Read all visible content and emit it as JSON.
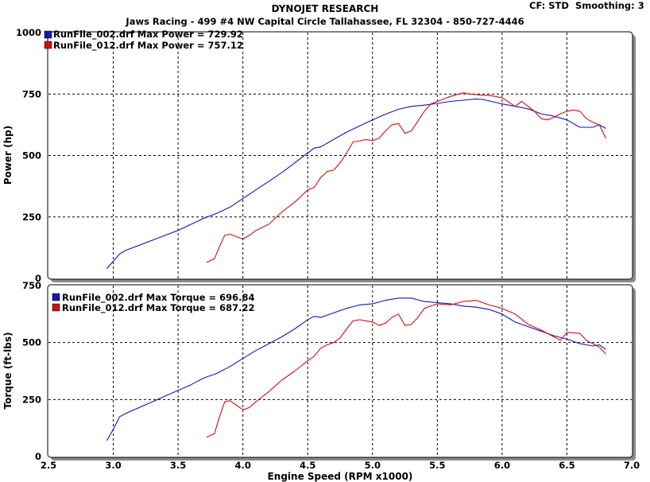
{
  "header": {
    "title": "DYNOJET RESEARCH",
    "subtitle": "Jaws Racing - 499 #4 NW Capital Circle Tallahassee, FL 32304 - 850-727-4446",
    "cf_label": "CF: STD",
    "smoothing_label": "Smoothing: 3"
  },
  "colors": {
    "blue": "#1515b5",
    "red": "#cc1111"
  },
  "chart_data": [
    {
      "type": "line",
      "ylabel": "Power (hp)",
      "xlabel": "",
      "xlim": [
        2.5,
        7.0
      ],
      "ylim": [
        0,
        1000
      ],
      "yticks": [
        "0",
        "250",
        "500",
        "750",
        "1000"
      ],
      "grid": true,
      "legend_position": "top-left",
      "series": [
        {
          "name": "RunFile_002.drf Max Power = 729.92",
          "color": "#1515b5",
          "x": [
            2.95,
            3.0,
            3.05,
            3.1,
            3.2,
            3.3,
            3.4,
            3.5,
            3.6,
            3.7,
            3.8,
            3.9,
            4.0,
            4.1,
            4.2,
            4.3,
            4.4,
            4.5,
            4.55,
            4.6,
            4.7,
            4.8,
            4.9,
            5.0,
            5.1,
            5.2,
            5.3,
            5.4,
            5.5,
            5.6,
            5.7,
            5.8,
            5.85,
            5.9,
            6.0,
            6.1,
            6.2,
            6.3,
            6.4,
            6.5,
            6.6,
            6.7,
            6.75,
            6.8
          ],
          "y": [
            40,
            70,
            100,
            115,
            135,
            155,
            175,
            195,
            220,
            245,
            265,
            290,
            325,
            360,
            395,
            430,
            470,
            510,
            530,
            535,
            565,
            595,
            620,
            645,
            668,
            688,
            700,
            705,
            712,
            720,
            725,
            730,
            728,
            722,
            710,
            700,
            690,
            670,
            660,
            645,
            615,
            615,
            625,
            610
          ]
        },
        {
          "name": "RunFile_012.drf Max Power = 757.12",
          "color": "#cc1111",
          "x": [
            3.72,
            3.78,
            3.82,
            3.86,
            3.9,
            3.95,
            4.0,
            4.05,
            4.1,
            4.2,
            4.3,
            4.4,
            4.5,
            4.55,
            4.6,
            4.65,
            4.7,
            4.75,
            4.8,
            4.85,
            4.9,
            4.95,
            5.0,
            5.05,
            5.1,
            5.15,
            5.2,
            5.25,
            5.3,
            5.35,
            5.4,
            5.45,
            5.5,
            5.55,
            5.6,
            5.7,
            5.75,
            5.8,
            5.85,
            5.9,
            6.0,
            6.1,
            6.15,
            6.2,
            6.25,
            6.3,
            6.35,
            6.4,
            6.45,
            6.5,
            6.55,
            6.6,
            6.65,
            6.7,
            6.75,
            6.8
          ],
          "y": [
            65,
            80,
            130,
            175,
            180,
            170,
            160,
            175,
            195,
            220,
            270,
            310,
            360,
            370,
            410,
            435,
            440,
            470,
            510,
            555,
            560,
            565,
            560,
            570,
            600,
            625,
            630,
            590,
            600,
            640,
            680,
            710,
            720,
            730,
            740,
            755,
            750,
            748,
            745,
            745,
            735,
            700,
            720,
            700,
            680,
            650,
            645,
            655,
            670,
            680,
            685,
            680,
            650,
            635,
            625,
            570
          ]
        }
      ]
    },
    {
      "type": "line",
      "ylabel": "Torque (ft-lbs)",
      "xlabel": "Engine Speed (RPM x1000)",
      "xlim": [
        2.5,
        7.0
      ],
      "ylim": [
        0,
        750
      ],
      "xticks": [
        "2.5",
        "3.0",
        "3.5",
        "4.0",
        "4.5",
        "5.0",
        "5.5",
        "6.0",
        "6.5",
        "7.0"
      ],
      "yticks": [
        "0",
        "250",
        "500",
        "750"
      ],
      "grid": true,
      "legend_position": "top-left",
      "series": [
        {
          "name": "RunFile_002.drf Max Torque = 696.84",
          "color": "#1515b5",
          "x": [
            2.95,
            3.0,
            3.05,
            3.1,
            3.2,
            3.3,
            3.4,
            3.5,
            3.6,
            3.7,
            3.8,
            3.9,
            4.0,
            4.1,
            4.2,
            4.3,
            4.4,
            4.5,
            4.55,
            4.6,
            4.7,
            4.8,
            4.9,
            5.0,
            5.1,
            5.2,
            5.3,
            5.4,
            5.5,
            5.6,
            5.7,
            5.8,
            5.9,
            6.0,
            6.1,
            6.2,
            6.3,
            6.4,
            6.5,
            6.6,
            6.7,
            6.75,
            6.8
          ],
          "y": [
            70,
            120,
            175,
            190,
            215,
            240,
            265,
            290,
            315,
            345,
            365,
            395,
            430,
            465,
            495,
            525,
            560,
            600,
            615,
            610,
            630,
            650,
            665,
            670,
            685,
            695,
            695,
            680,
            675,
            670,
            660,
            655,
            645,
            625,
            590,
            570,
            550,
            530,
            515,
            495,
            485,
            490,
            470
          ]
        },
        {
          "name": "RunFile_012.drf Max Torque = 687.22",
          "color": "#cc1111",
          "x": [
            3.72,
            3.78,
            3.82,
            3.86,
            3.9,
            3.95,
            4.0,
            4.05,
            4.1,
            4.2,
            4.3,
            4.4,
            4.5,
            4.55,
            4.6,
            4.65,
            4.7,
            4.75,
            4.8,
            4.85,
            4.9,
            4.95,
            5.0,
            5.05,
            5.1,
            5.15,
            5.2,
            5.25,
            5.3,
            5.35,
            5.4,
            5.5,
            5.6,
            5.7,
            5.8,
            5.9,
            6.0,
            6.1,
            6.2,
            6.3,
            6.4,
            6.45,
            6.5,
            6.6,
            6.65,
            6.7,
            6.75,
            6.8
          ],
          "y": [
            85,
            100,
            175,
            240,
            245,
            225,
            205,
            215,
            240,
            285,
            335,
            375,
            420,
            440,
            475,
            490,
            500,
            520,
            560,
            595,
            600,
            595,
            590,
            575,
            585,
            610,
            625,
            575,
            580,
            610,
            650,
            670,
            665,
            680,
            685,
            665,
            650,
            625,
            580,
            555,
            525,
            510,
            545,
            540,
            510,
            495,
            480,
            450
          ]
        }
      ]
    }
  ]
}
